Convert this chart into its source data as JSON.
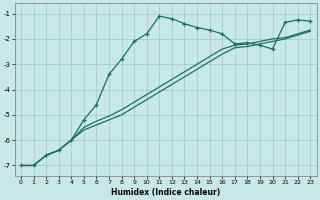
{
  "xlabel": "Humidex (Indice chaleur)",
  "bg_color": "#c8e8e8",
  "grid_color": "#a0c8c8",
  "line_color": "#1a7060",
  "xlim": [
    -0.5,
    23.5
  ],
  "ylim": [
    -7.4,
    -0.6
  ],
  "yticks": [
    -7,
    -6,
    -5,
    -4,
    -3,
    -2,
    -1
  ],
  "xticks": [
    0,
    1,
    2,
    3,
    4,
    5,
    6,
    7,
    8,
    9,
    10,
    11,
    12,
    13,
    14,
    15,
    16,
    17,
    18,
    19,
    20,
    21,
    22,
    23
  ],
  "s1_x": [
    0,
    1,
    2,
    3,
    4,
    5,
    6,
    7,
    8,
    9,
    10,
    11,
    12,
    13,
    14,
    15,
    16,
    17,
    18,
    19,
    20,
    21,
    22,
    23
  ],
  "s1_y": [
    -7.0,
    -7.0,
    -6.6,
    -6.4,
    -6.0,
    -5.2,
    -4.6,
    -3.4,
    -2.8,
    -2.1,
    -1.8,
    -1.1,
    -1.2,
    -1.4,
    -1.55,
    -1.65,
    -1.8,
    -2.2,
    -2.15,
    -2.25,
    -2.4,
    -1.35,
    -1.25,
    -1.3
  ],
  "s2_x": [
    0,
    1,
    2,
    3,
    4,
    5,
    6,
    7,
    8,
    9,
    10,
    11,
    12,
    13,
    14,
    15,
    16,
    17,
    18,
    19,
    20,
    21,
    22,
    23
  ],
  "s2_y": [
    -7.0,
    -7.0,
    -6.6,
    -6.4,
    -6.0,
    -5.5,
    -5.25,
    -5.05,
    -4.8,
    -4.5,
    -4.2,
    -3.9,
    -3.6,
    -3.3,
    -3.0,
    -2.7,
    -2.4,
    -2.25,
    -2.2,
    -2.1,
    -2.0,
    -1.95,
    -1.8,
    -1.65
  ],
  "s3_x": [
    0,
    1,
    2,
    3,
    4,
    5,
    6,
    7,
    8,
    9,
    10,
    11,
    12,
    13,
    14,
    15,
    16,
    17,
    18,
    19,
    20,
    21,
    22,
    23
  ],
  "s3_y": [
    -7.0,
    -7.0,
    -6.6,
    -6.4,
    -6.0,
    -5.6,
    -5.4,
    -5.2,
    -5.0,
    -4.7,
    -4.4,
    -4.1,
    -3.8,
    -3.5,
    -3.2,
    -2.9,
    -2.6,
    -2.35,
    -2.3,
    -2.2,
    -2.1,
    -2.0,
    -1.85,
    -1.7
  ],
  "xlabel_fontsize": 5.5,
  "tick_fontsize": 4.5,
  "linewidth": 0.9,
  "marker_size": 3.5
}
